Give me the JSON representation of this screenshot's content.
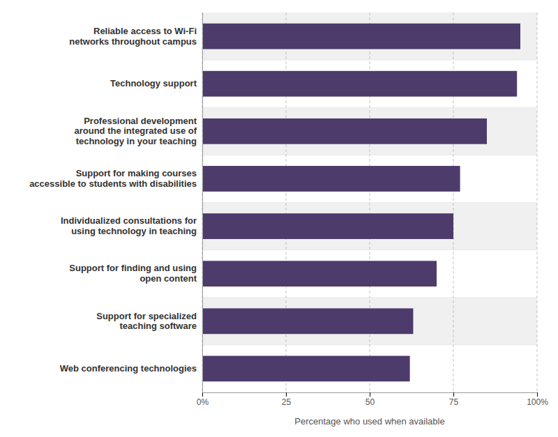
{
  "chart_data": {
    "type": "bar",
    "orientation": "horizontal",
    "categories": [
      "Web conferencing technologies",
      "Support for specialized\nteaching software",
      "Support for finding and using\nopen content",
      "Individualized consultations for\nusing technology in teaching",
      "Support for making courses\naccessible to students with disabilities",
      "Professional development\naround the integrated use of\ntechnology in your teaching",
      "Technology support",
      "Reliable access to Wi-Fi\nnetworks throughout campus"
    ],
    "values": [
      62,
      63,
      70,
      75,
      77,
      85,
      94,
      95
    ],
    "color": "#4d3b6b",
    "xlabel": "Percentage who used when available",
    "xlim": [
      0,
      100
    ],
    "xticks": [
      {
        "value": 0,
        "label": "0%"
      },
      25,
      50,
      75,
      {
        "value": 100,
        "label": "100%"
      }
    ],
    "grid": true
  }
}
